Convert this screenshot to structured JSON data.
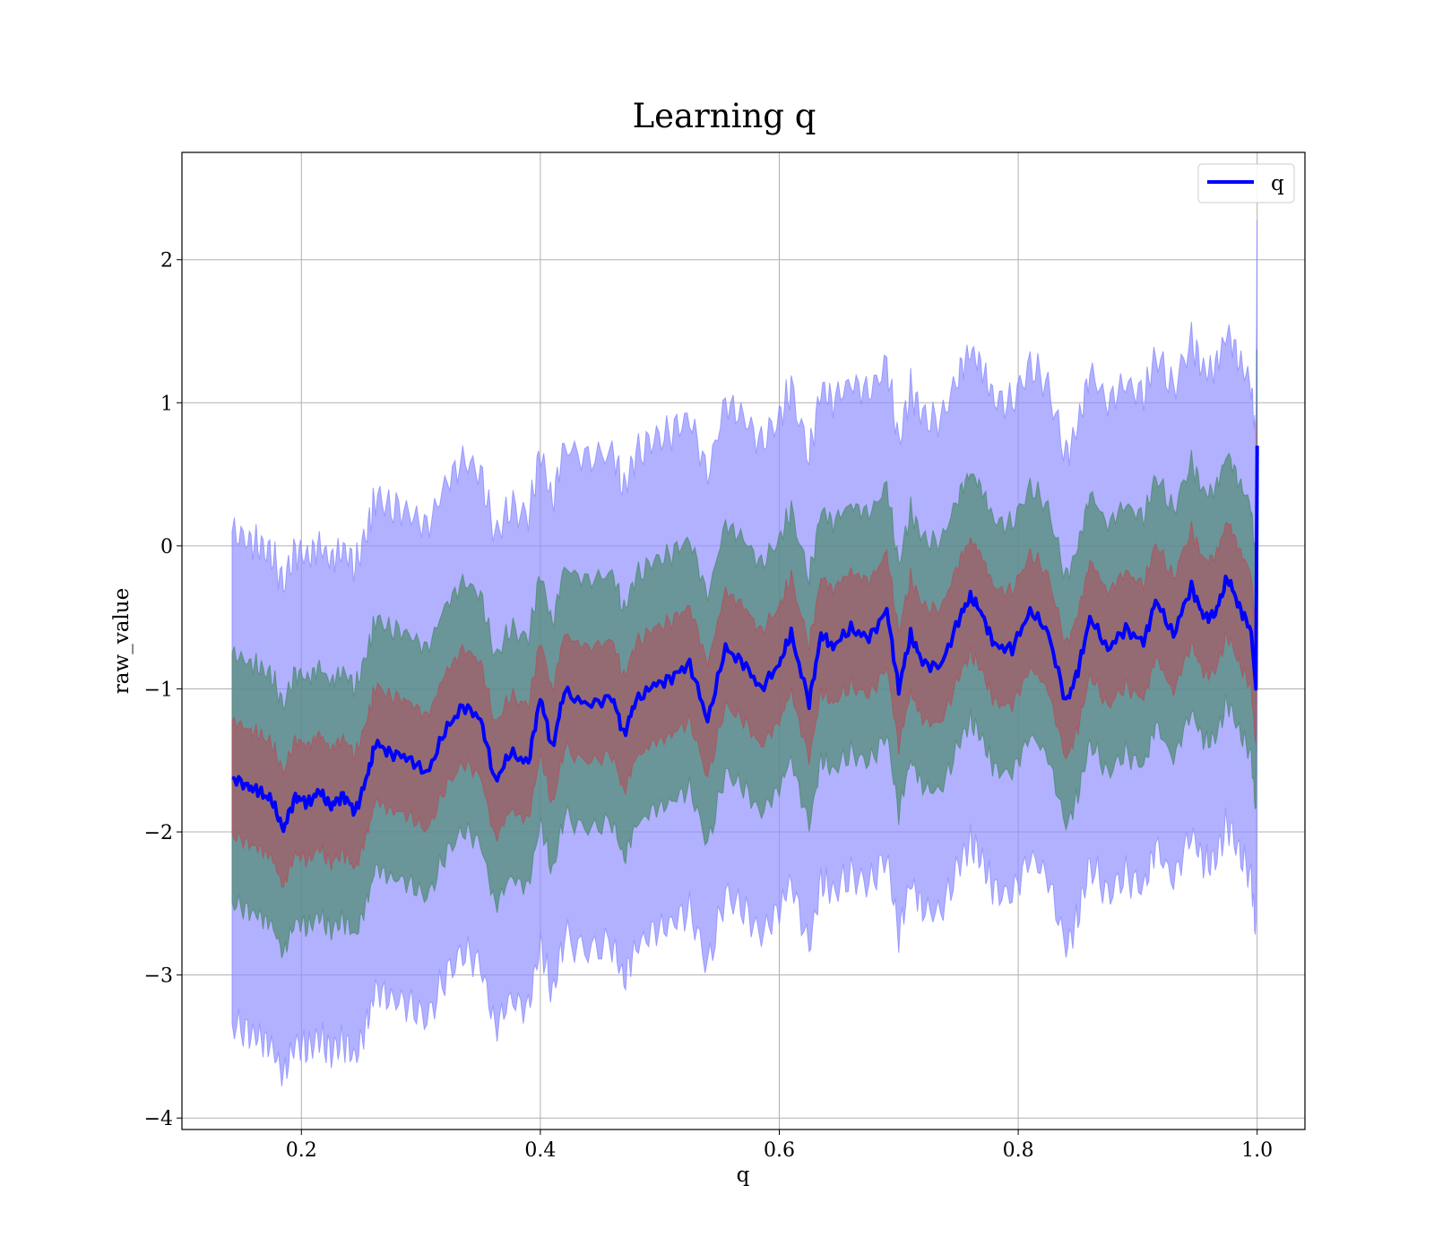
{
  "chart_data": {
    "type": "line",
    "title": "Learning q",
    "xlabel": "q",
    "ylabel": "raw_value",
    "xlim": [
      0.1,
      1.04
    ],
    "ylim": [
      -4.08,
      2.75
    ],
    "xticks": [
      0.2,
      0.4,
      0.6,
      0.8,
      1.0
    ],
    "xtick_labels": [
      "0.2",
      "0.4",
      "0.6",
      "0.8",
      "1.0"
    ],
    "yticks": [
      -4,
      -3,
      -2,
      -1,
      0,
      1,
      2
    ],
    "ytick_labels": [
      "−4",
      "−3",
      "−2",
      "−1",
      "0",
      "1",
      "2"
    ],
    "grid": true,
    "legend_position": "top-right",
    "colors": {
      "line": "#0000ff",
      "band_outer": "#8c8cff",
      "band_middle": "#4f8a72",
      "band_inner": "#b0505a"
    },
    "series": [
      {
        "name": "q",
        "x": [
          0.142,
          0.155,
          0.165,
          0.175,
          0.185,
          0.195,
          0.205,
          0.215,
          0.225,
          0.235,
          0.245,
          0.255,
          0.262,
          0.275,
          0.29,
          0.305,
          0.32,
          0.335,
          0.35,
          0.362,
          0.375,
          0.39,
          0.4,
          0.41,
          0.42,
          0.44,
          0.46,
          0.47,
          0.48,
          0.495,
          0.51,
          0.525,
          0.54,
          0.555,
          0.57,
          0.585,
          0.6,
          0.61,
          0.625,
          0.635,
          0.645,
          0.66,
          0.675,
          0.69,
          0.7,
          0.71,
          0.72,
          0.735,
          0.75,
          0.76,
          0.77,
          0.78,
          0.795,
          0.81,
          0.825,
          0.84,
          0.85,
          0.86,
          0.875,
          0.89,
          0.905,
          0.915,
          0.93,
          0.945,
          0.955,
          0.965,
          0.975,
          0.985,
          0.995,
          0.999,
          1.0
        ],
        "y": [
          -1.62,
          -1.68,
          -1.72,
          -1.78,
          -1.98,
          -1.75,
          -1.8,
          -1.72,
          -1.82,
          -1.74,
          -1.86,
          -1.62,
          -1.38,
          -1.45,
          -1.48,
          -1.6,
          -1.3,
          -1.12,
          -1.2,
          -1.65,
          -1.45,
          -1.52,
          -1.05,
          -1.42,
          -1.02,
          -1.12,
          -1.05,
          -1.32,
          -1.08,
          -0.98,
          -0.92,
          -0.82,
          -1.22,
          -0.72,
          -0.82,
          -1.0,
          -0.82,
          -0.62,
          -1.1,
          -0.62,
          -0.7,
          -0.58,
          -0.65,
          -0.45,
          -1.0,
          -0.62,
          -0.82,
          -0.85,
          -0.52,
          -0.35,
          -0.48,
          -0.7,
          -0.72,
          -0.45,
          -0.6,
          -1.1,
          -0.88,
          -0.5,
          -0.72,
          -0.58,
          -0.68,
          -0.38,
          -0.62,
          -0.28,
          -0.5,
          -0.48,
          -0.22,
          -0.42,
          -0.6,
          -1.0,
          0.7
        ]
      }
    ],
    "bands": [
      {
        "name": "outer",
        "half_width": 1.72
      },
      {
        "name": "middle",
        "half_width": 0.87
      },
      {
        "name": "inner",
        "half_width": 0.4
      }
    ],
    "legend": [
      "q"
    ]
  }
}
